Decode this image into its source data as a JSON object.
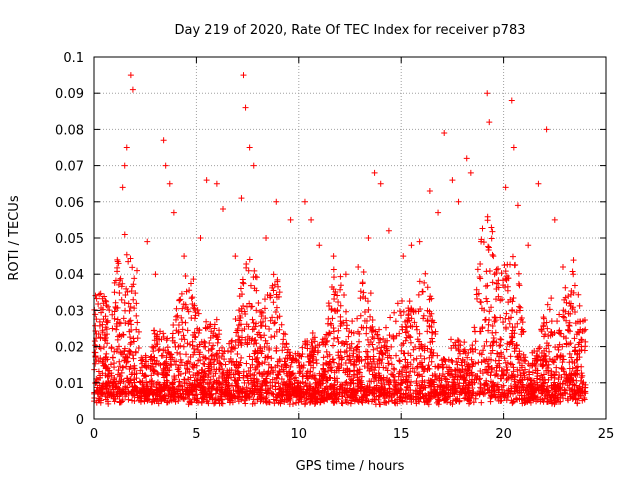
{
  "chart_data": {
    "type": "scatter",
    "title": "Day 219 of 2020, Rate Of TEC Index for receiver p783",
    "xlabel": "GPS time / hours",
    "ylabel": "ROTI / TECUs",
    "xlim": [
      0,
      25
    ],
    "ylim": [
      0,
      0.1
    ],
    "x_ticks": [
      "0",
      "5",
      "10",
      "15",
      "20",
      "25"
    ],
    "y_ticks": [
      "0",
      "0.01",
      "0.02",
      "0.03",
      "0.04",
      "0.05",
      "0.06",
      "0.07",
      "0.08",
      "0.09",
      "0.1"
    ],
    "grid": true,
    "marker": "plus",
    "color": "#ff0000",
    "series": [
      {
        "points": [
          [
            0.3,
            0.012
          ],
          [
            0.6,
            0.018
          ],
          [
            0.9,
            0.025
          ],
          [
            1.0,
            0.035
          ],
          [
            1.2,
            0.043
          ],
          [
            1.4,
            0.064
          ],
          [
            1.5,
            0.07
          ],
          [
            1.6,
            0.075
          ],
          [
            1.8,
            0.095
          ],
          [
            1.9,
            0.091
          ],
          [
            2.1,
            0.041
          ],
          [
            2.6,
            0.049
          ],
          [
            3.0,
            0.04
          ],
          [
            3.4,
            0.077
          ],
          [
            3.5,
            0.07
          ],
          [
            3.7,
            0.065
          ],
          [
            3.9,
            0.057
          ],
          [
            4.4,
            0.045
          ],
          [
            5.2,
            0.05
          ],
          [
            5.5,
            0.066
          ],
          [
            6.0,
            0.065
          ],
          [
            6.3,
            0.058
          ],
          [
            6.9,
            0.045
          ],
          [
            7.2,
            0.061
          ],
          [
            7.3,
            0.095
          ],
          [
            7.4,
            0.086
          ],
          [
            7.6,
            0.075
          ],
          [
            7.8,
            0.07
          ],
          [
            8.4,
            0.05
          ],
          [
            8.9,
            0.06
          ],
          [
            9.6,
            0.055
          ],
          [
            10.3,
            0.06
          ],
          [
            10.6,
            0.055
          ],
          [
            11.0,
            0.048
          ],
          [
            11.7,
            0.045
          ],
          [
            12.3,
            0.04
          ],
          [
            12.9,
            0.042
          ],
          [
            13.4,
            0.05
          ],
          [
            13.7,
            0.068
          ],
          [
            14.0,
            0.065
          ],
          [
            14.4,
            0.052
          ],
          [
            15.1,
            0.045
          ],
          [
            15.5,
            0.048
          ],
          [
            15.9,
            0.049
          ],
          [
            16.4,
            0.063
          ],
          [
            16.8,
            0.057
          ],
          [
            17.1,
            0.079
          ],
          [
            17.5,
            0.066
          ],
          [
            17.8,
            0.06
          ],
          [
            18.2,
            0.072
          ],
          [
            18.4,
            0.068
          ],
          [
            18.9,
            0.049
          ],
          [
            19.2,
            0.09
          ],
          [
            19.3,
            0.082
          ],
          [
            19.5,
            0.045
          ],
          [
            20.1,
            0.064
          ],
          [
            20.4,
            0.088
          ],
          [
            20.5,
            0.075
          ],
          [
            20.7,
            0.059
          ],
          [
            21.2,
            0.048
          ],
          [
            21.7,
            0.065
          ],
          [
            22.1,
            0.08
          ],
          [
            22.5,
            0.055
          ],
          [
            22.9,
            0.042
          ],
          [
            23.4,
            0.04
          ],
          [
            23.8,
            0.02
          ],
          [
            5.0,
            0.005
          ],
          [
            10.0,
            0.01
          ],
          [
            15.0,
            0.008
          ],
          [
            20.0,
            0.012
          ]
        ]
      }
    ]
  }
}
